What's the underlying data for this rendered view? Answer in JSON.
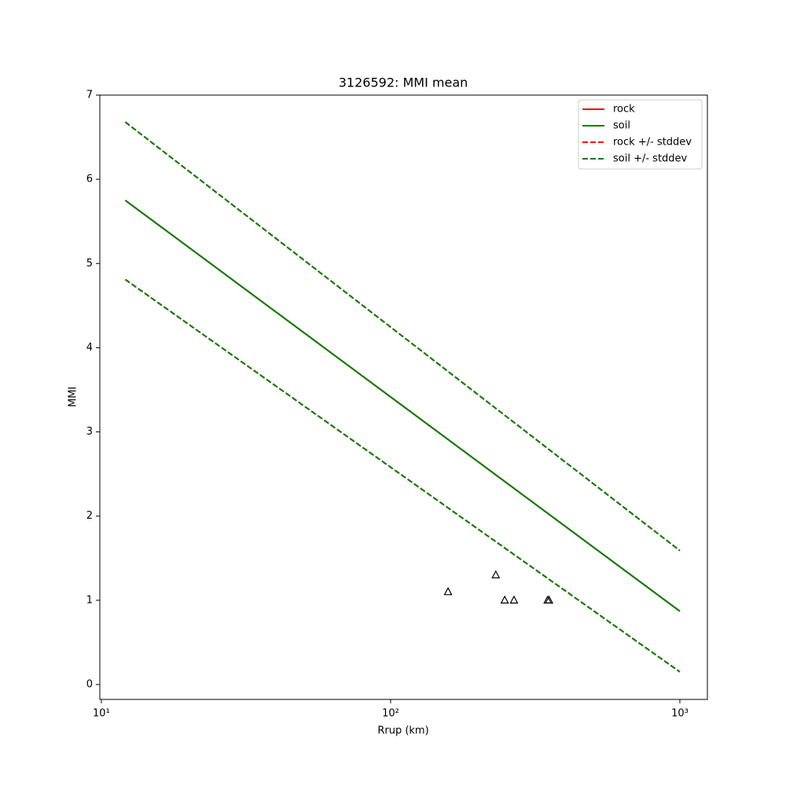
{
  "chart_data": {
    "type": "line",
    "title": "3126592: MMI mean",
    "x_label": "Rrup (km)",
    "y_label": "MMI",
    "xscale": "log",
    "xlim": [
      9.88,
      1245
    ],
    "ylim": [
      -0.177,
      7.0
    ],
    "xticks": [
      {
        "value": 10,
        "label": "10¹"
      },
      {
        "value": 100,
        "label": "10²"
      },
      {
        "value": 1000,
        "label": "10³"
      }
    ],
    "yticks": [
      0,
      1,
      2,
      3,
      4,
      5,
      6,
      7
    ],
    "legend": "upper right",
    "series": [
      {
        "name": "rock",
        "color": "#ff0000",
        "style": "solid",
        "x": [
          12.1,
          1000
        ],
        "values": [
          5.75,
          0.87
        ]
      },
      {
        "name": "soil",
        "color": "#008000",
        "style": "solid",
        "x": [
          12.1,
          1000
        ],
        "values": [
          5.75,
          0.87
        ]
      },
      {
        "name": "rock +/- stddev",
        "color": "#ff0000",
        "style": "dashed",
        "x": [
          12.1,
          1000
        ],
        "upper": [
          6.68,
          1.59
        ],
        "lower": [
          4.81,
          0.15
        ]
      },
      {
        "name": "soil +/- stddev",
        "color": "#008000",
        "style": "dashed",
        "x": [
          12.1,
          1000
        ],
        "upper": [
          6.68,
          1.59
        ],
        "lower": [
          4.81,
          0.15
        ]
      }
    ],
    "points": {
      "marker": "triangle",
      "color": "#000000",
      "x": [
        158,
        231,
        248,
        267,
        349,
        353
      ],
      "values": [
        1.1,
        1.3,
        1.0,
        1.0,
        1.0,
        1.0
      ]
    }
  }
}
